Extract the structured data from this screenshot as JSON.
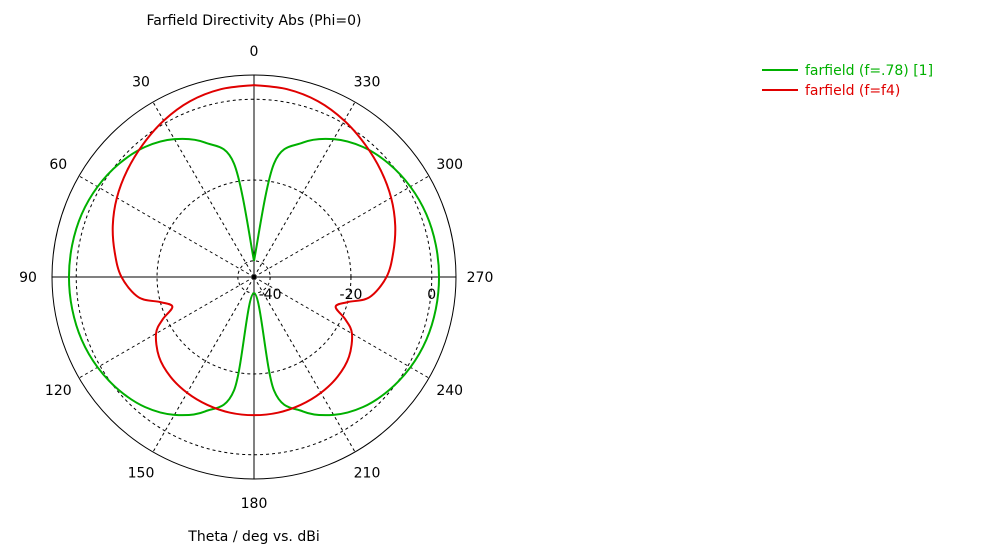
{
  "chart_data": {
    "type": "polar-line",
    "title": "Farfield Directivity Abs (Phi=0)",
    "xlabel": "Theta / deg vs. dBi",
    "angle_unit": "deg",
    "angle_zero": "top",
    "angle_direction": "counterclockwise",
    "angle_ticks": [
      0,
      30,
      60,
      90,
      120,
      150,
      180,
      210,
      240,
      270,
      300,
      330
    ],
    "angle_tick_labels": [
      "0",
      "30",
      "60",
      "90",
      "120",
      "150",
      "180",
      "210",
      "240",
      "270",
      "300",
      "330"
    ],
    "radial_range": [
      -44,
      6
    ],
    "radial_ticks": [
      -40,
      -20,
      0
    ],
    "radial_tick_labels": [
      "-40",
      "-20",
      "0"
    ],
    "grid": true,
    "legend_position": "top-right",
    "series": [
      {
        "name": "farfield (f=.78) [1]",
        "color": "#00b000",
        "theta": [
          0,
          10,
          20,
          30,
          40,
          50,
          60,
          70,
          80,
          90,
          100,
          110,
          120,
          130,
          140,
          150,
          160,
          170,
          180,
          190,
          200,
          210,
          220,
          230,
          240,
          250,
          260,
          270,
          280,
          290,
          300,
          310,
          320,
          330,
          340,
          350,
          360
        ],
        "r": [
          -40,
          -15.5,
          -8.6,
          -4.6,
          -2.0,
          -0.4,
          0.7,
          1.4,
          1.7,
          1.8,
          1.7,
          1.4,
          0.7,
          -0.4,
          -2.0,
          -4.6,
          -8.6,
          -15.5,
          -40,
          -15.5,
          -8.6,
          -4.6,
          -2.0,
          -0.4,
          0.7,
          1.4,
          1.7,
          1.8,
          1.7,
          1.4,
          0.7,
          -0.4,
          -2.0,
          -4.6,
          -8.6,
          -15.5,
          -40
        ]
      },
      {
        "name": "farfield (f=f4)",
        "color": "#e00000",
        "theta": [
          0,
          10,
          20,
          30,
          40,
          50,
          60,
          70,
          80,
          90,
          100,
          105,
          110,
          115,
          120,
          130,
          140,
          150,
          160,
          170,
          180,
          190,
          200,
          210,
          220,
          230,
          240,
          245,
          250,
          255,
          260,
          270,
          280,
          290,
          300,
          310,
          320,
          330,
          340,
          350,
          360
        ],
        "r": [
          3.5,
          3.2,
          2.3,
          0.7,
          -1.2,
          -3.0,
          -4.8,
          -6.8,
          -9.0,
          -11.2,
          -15.0,
          -20.0,
          -22.5,
          -19.0,
          -16.0,
          -13.3,
          -11.8,
          -10.9,
          -10.3,
          -9.9,
          -9.8,
          -9.9,
          -10.3,
          -10.9,
          -11.8,
          -13.3,
          -16.0,
          -19.0,
          -22.5,
          -20.0,
          -15.0,
          -11.2,
          -9.0,
          -6.8,
          -4.8,
          -3.0,
          -1.2,
          0.7,
          2.3,
          3.2,
          3.5
        ]
      }
    ]
  }
}
